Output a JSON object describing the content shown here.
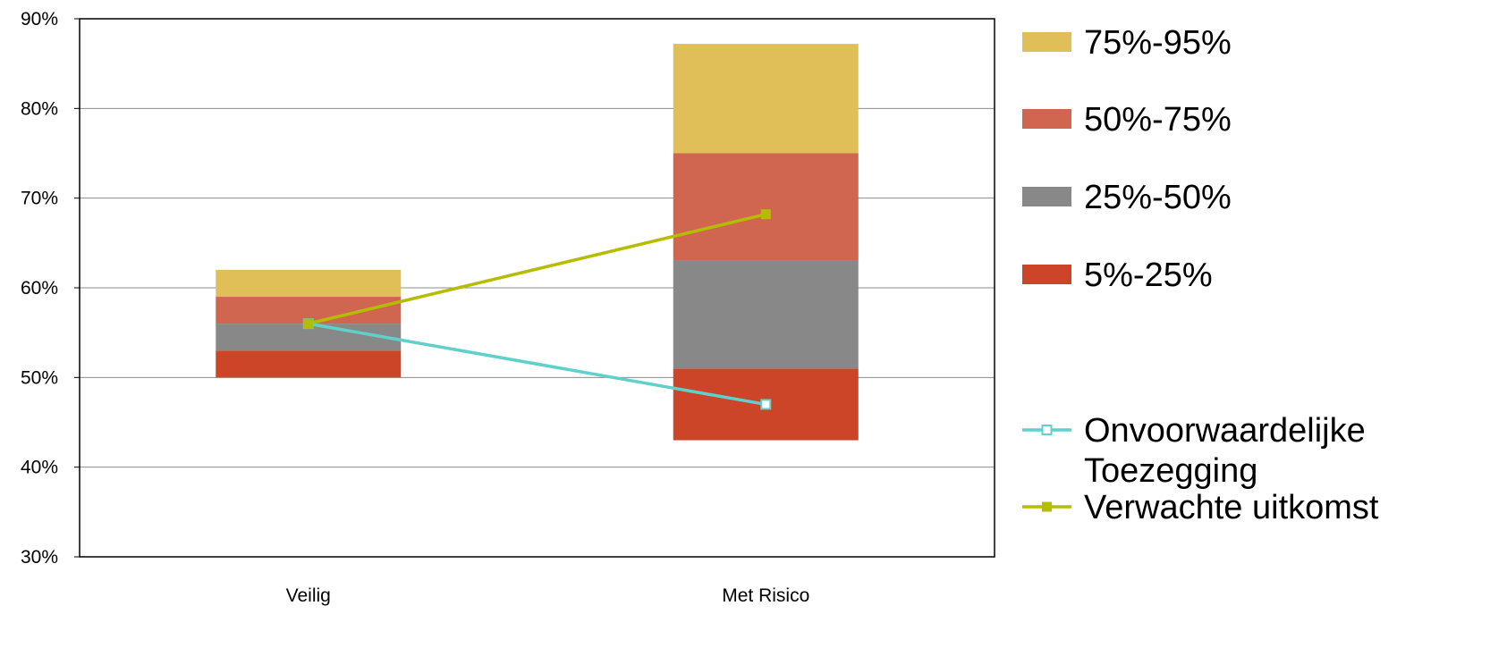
{
  "chart_data": {
    "type": "bar",
    "subtype": "stacked-floating-range-with-lines",
    "categories": [
      "Veilig",
      "Met Risico"
    ],
    "ylim": [
      0.3,
      0.9
    ],
    "yticks": [
      0.3,
      0.4,
      0.5,
      0.6,
      0.7,
      0.8,
      0.9
    ],
    "ytick_labels": [
      "30%",
      "40%",
      "50%",
      "60%",
      "70%",
      "80%",
      "90%"
    ],
    "grid": true,
    "legend_position": "right",
    "ranges": [
      {
        "name": "5%-25%",
        "color": "#cc4529",
        "values": [
          [
            0.5,
            0.53
          ],
          [
            0.43,
            0.51
          ]
        ]
      },
      {
        "name": "25%-50%",
        "color": "#888888",
        "values": [
          [
            0.53,
            0.56
          ],
          [
            0.51,
            0.63
          ]
        ]
      },
      {
        "name": "50%-75%",
        "color": "#d06650",
        "values": [
          [
            0.56,
            0.59
          ],
          [
            0.63,
            0.75
          ]
        ]
      },
      {
        "name": "75%-95%",
        "color": "#e0bf58",
        "values": [
          [
            0.59,
            0.62
          ],
          [
            0.75,
            0.872
          ]
        ]
      }
    ],
    "lines": [
      {
        "name_lines": [
          "Onvoorwaardelijke",
          "Toezegging"
        ],
        "color": "#5fd0cc",
        "marker": "hollow-square",
        "values": [
          0.56,
          0.47
        ]
      },
      {
        "name_lines": [
          "Verwachte uitkomst"
        ],
        "color": "#b5bd00",
        "marker": "filled-square",
        "values": [
          0.56,
          0.682
        ]
      }
    ],
    "legend_order": [
      "75%-95%",
      "50%-75%",
      "25%-50%",
      "5%-25%"
    ]
  }
}
